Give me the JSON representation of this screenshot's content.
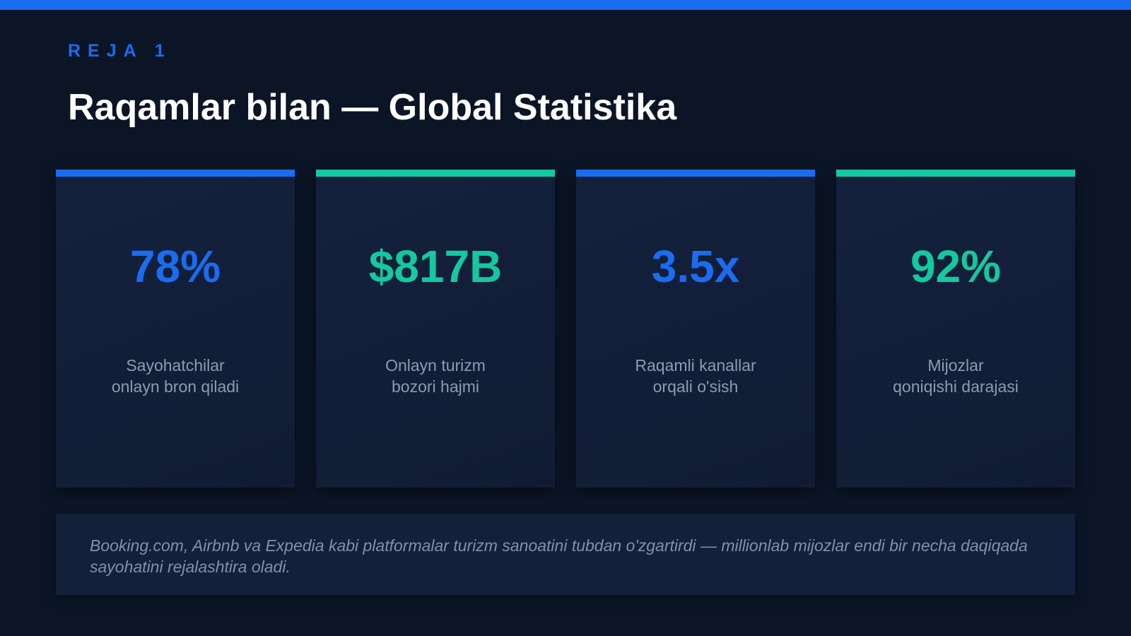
{
  "header": {
    "label": "REJA 1",
    "title": "Raqamlar bilan — Global Statistika"
  },
  "stats": [
    {
      "value": "78%",
      "lines": [
        "Sayohatchilar",
        "onlayn bron qiladi"
      ],
      "accent": "#1a6cf0"
    },
    {
      "value": "$817B",
      "lines": [
        "Onlayn turizm",
        "bozori hajmi"
      ],
      "accent": "#14c9a0"
    },
    {
      "value": "3.5x",
      "lines": [
        "Raqamli kanallar",
        "orqali o'sish"
      ],
      "accent": "#1a6cf0"
    },
    {
      "value": "92%",
      "lines": [
        "Mijozlar",
        "qoniqishi darajasi"
      ],
      "accent": "#14c9a0"
    }
  ],
  "note": "Booking.com, Airbnb va Expedia kabi platformalar turizm sanoatini tubdan o'zgartirdi — millionlab mijozlar endi bir necha daqiqada sayohatini rejalashtira oladi."
}
